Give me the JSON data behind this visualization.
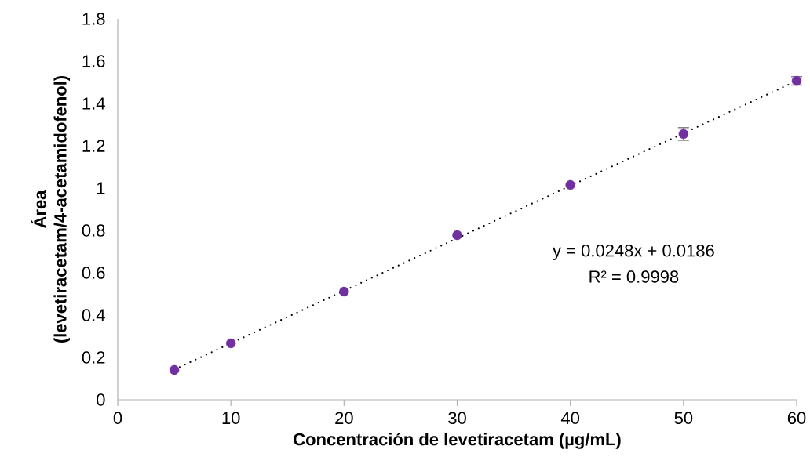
{
  "chart_data": {
    "type": "scatter",
    "xlabel": "Concentración de levetiracetam (µg/mL)",
    "ylabel": "Área (levetiracetam/4-acetamidofenol)",
    "annotations": [
      "y = 0.0248x + 0.0186",
      "R² = 0.9998"
    ],
    "x": [
      5,
      10,
      20,
      30,
      40,
      50,
      60
    ],
    "series": [
      {
        "color": "#7030a0",
        "values": [
          0.141,
          0.267,
          0.511,
          0.778,
          1.015,
          1.256,
          1.507
        ],
        "errors": [
          null,
          null,
          null,
          null,
          null,
          0.03,
          0.02
        ],
        "marker": "circle"
      },
      {
        "type": "line",
        "color": "#000000",
        "x": [
          5,
          60
        ],
        "values": [
          0.143,
          1.507
        ],
        "line_style": "dotted",
        "marker": "none"
      }
    ],
    "xlim": [
      0,
      60
    ],
    "xticks": [
      0,
      10,
      20,
      30,
      40,
      50,
      60
    ],
    "ylim": [
      0,
      1.8
    ],
    "yticks": [
      0,
      0.2,
      0.4,
      0.6,
      0.8,
      1,
      1.2,
      1.4,
      1.6,
      1.8
    ],
    "grid": false
  }
}
